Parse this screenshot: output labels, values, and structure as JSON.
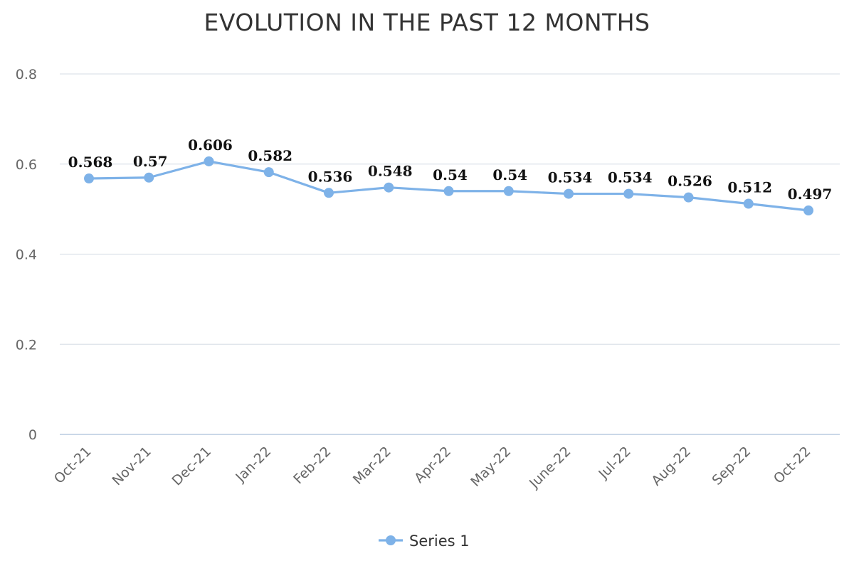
{
  "chart_data": {
    "type": "line",
    "title": "EVOLUTION IN THE PAST 12 MONTHS",
    "xlabel": "",
    "ylabel": "",
    "categories": [
      "Oct-21",
      "Nov-21",
      "Dec-21",
      "Jan-22",
      "Feb-22",
      "Mar-22",
      "Apr-22",
      "May-22",
      "June-22",
      "Jul-22",
      "Aug-22",
      "Sep-22",
      "Oct-22"
    ],
    "series": [
      {
        "name": "Series 1",
        "values": [
          0.568,
          0.57,
          0.606,
          0.582,
          0.536,
          0.548,
          0.54,
          0.54,
          0.534,
          0.534,
          0.526,
          0.512,
          0.497
        ],
        "labels": [
          "0.568",
          "0.57",
          "0.606",
          "0.582",
          "0.536",
          "0.548",
          "0.54",
          "0.54",
          "0.534",
          "0.534",
          "0.526",
          "0.512",
          "0.497"
        ],
        "color": "#7eb2e8"
      }
    ],
    "ylim": [
      0,
      0.8
    ],
    "yticks": [
      "0",
      "0.2",
      "0.4",
      "0.6",
      "0.8"
    ],
    "grid": true,
    "legend_position": "bottom"
  }
}
